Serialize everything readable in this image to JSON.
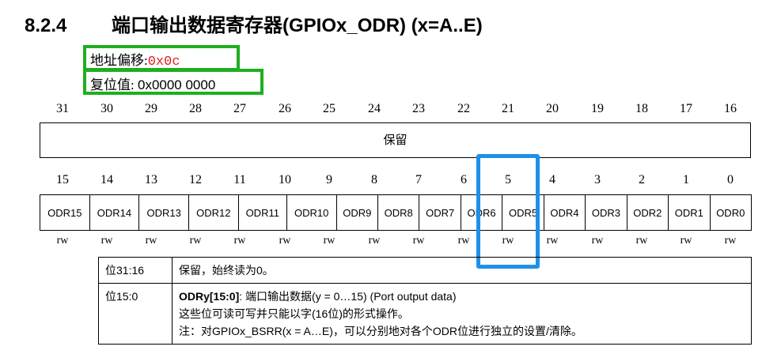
{
  "section": {
    "number": "8.2.4",
    "title": "端口输出数据寄存器(GPIOx_ODR) (x=A..E)"
  },
  "offset": {
    "label": "地址偏移:",
    "value": "0x0c"
  },
  "reset": {
    "label": "复位值:",
    "value": "0x0000 0000"
  },
  "high_bits": [
    "31",
    "30",
    "29",
    "28",
    "27",
    "26",
    "25",
    "24",
    "23",
    "22",
    "21",
    "20",
    "19",
    "18",
    "17",
    "16"
  ],
  "reserved_label": "保留",
  "low_bits": [
    "15",
    "14",
    "13",
    "12",
    "11",
    "10",
    "9",
    "8",
    "7",
    "6",
    "5",
    "4",
    "3",
    "2",
    "1",
    "0"
  ],
  "low_fields": [
    "ODR15",
    "ODR14",
    "ODR13",
    "ODR12",
    "ODR11",
    "ODR10",
    "ODR9",
    "ODR8",
    "ODR7",
    "ODR6",
    "ODR5",
    "ODR4",
    "ODR3",
    "ODR2",
    "ODR1",
    "ODR0"
  ],
  "access": [
    "rw",
    "rw",
    "rw",
    "rw",
    "rw",
    "rw",
    "rw",
    "rw",
    "rw",
    "rw",
    "rw",
    "rw",
    "rw",
    "rw",
    "rw",
    "rw"
  ],
  "description": {
    "row1": {
      "bits": "位31:16",
      "text": "保留，始终读为0。"
    },
    "row2": {
      "bits": "位15:0",
      "name": "ODRy[15:0]",
      "line1": ": 端口输出数据(y = 0…15) (Port output data)",
      "line2": "这些位可读可写并只能以字(16位)的形式操作。",
      "line3": "注：对GPIOx_BSRR(x = A…E)，可以分别地对各个ODR位进行独立的设置/清除。"
    }
  },
  "colors": {
    "highlight_green": "#1fae1f",
    "highlight_blue": "#1e90e8",
    "offset_red": "#e02020"
  }
}
